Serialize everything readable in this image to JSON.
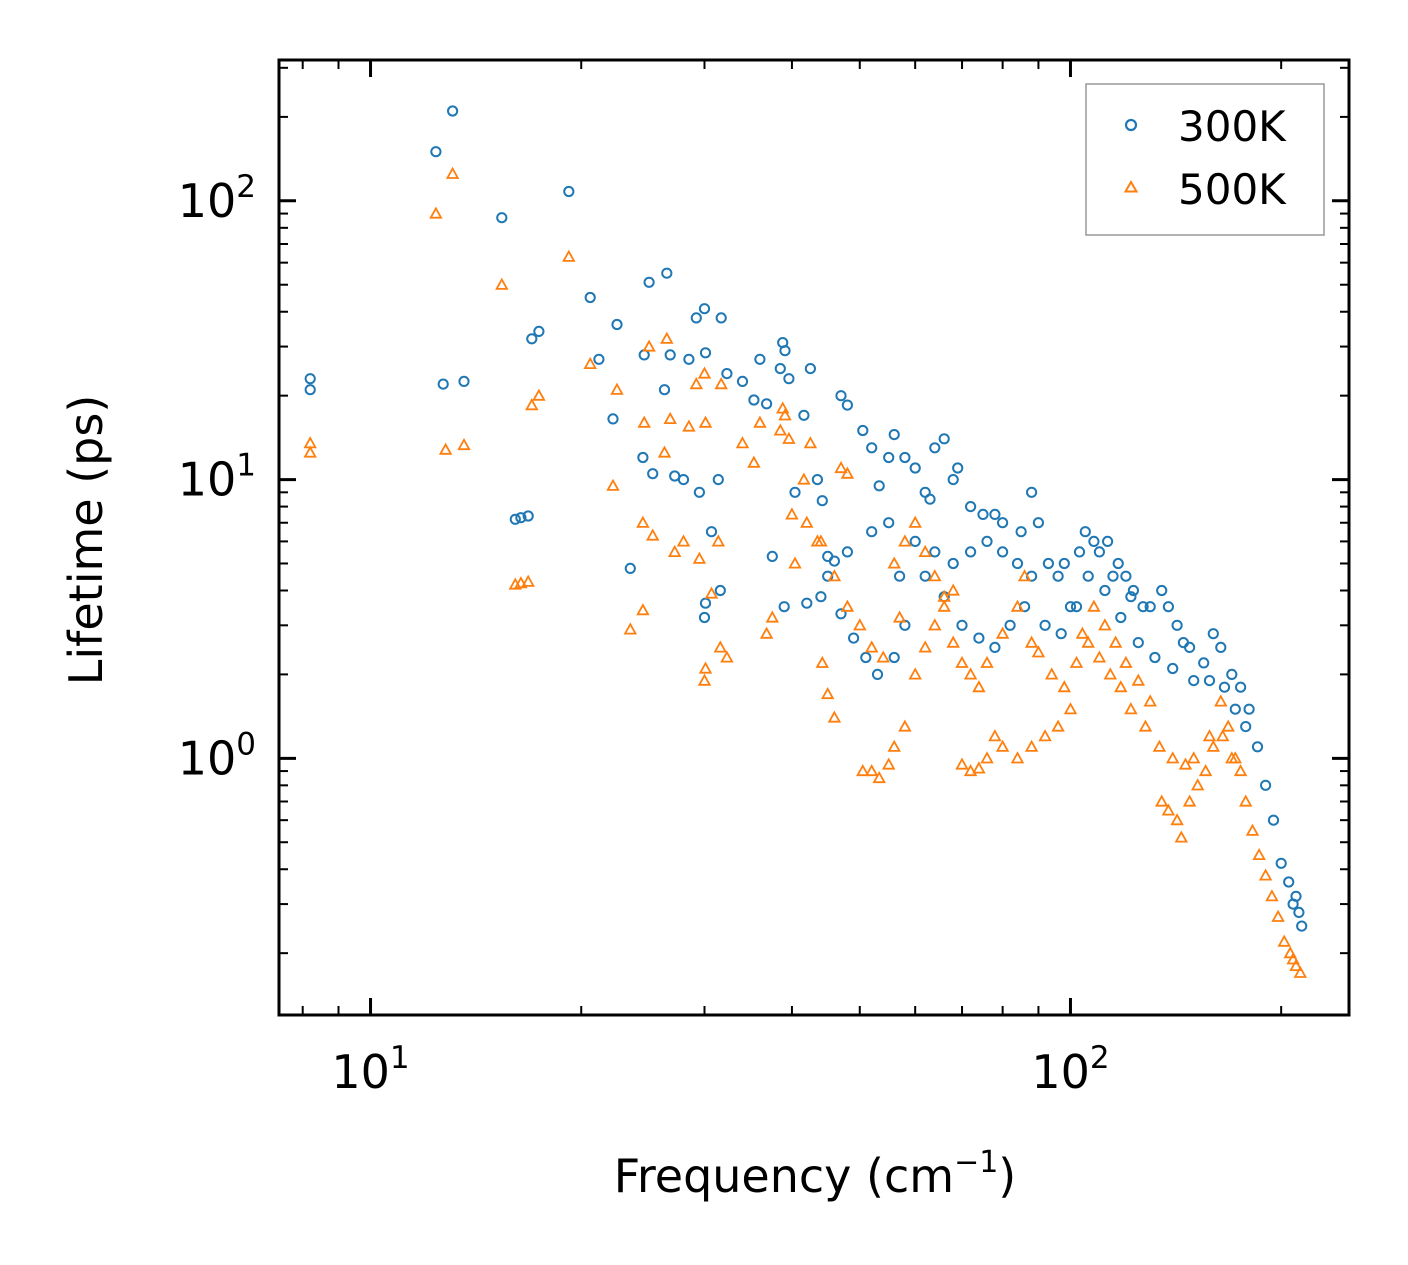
{
  "chart_data": {
    "type": "scatter",
    "title": "",
    "xlabel": "Frequency (cm",
    "xlabel_sup": "−1",
    "xlabel_end": ")",
    "ylabel": "Lifetime (ps)",
    "xscale": "log",
    "yscale": "log",
    "xlim": [
      7.4,
      250
    ],
    "ylim": [
      0.12,
      320
    ],
    "xticks": [
      {
        "value": 10,
        "base": "10",
        "exp": "1"
      },
      {
        "value": 100,
        "base": "10",
        "exp": "2"
      }
    ],
    "yticks": [
      {
        "value": 1,
        "base": "10",
        "exp": "0"
      },
      {
        "value": 10,
        "base": "10",
        "exp": "1"
      },
      {
        "value": 100,
        "base": "10",
        "exp": "2"
      }
    ],
    "legend_position": "top-right",
    "series": [
      {
        "name": "300K",
        "marker": "circle",
        "color": "#1f77b4",
        "points": [
          [
            8.2,
            23
          ],
          [
            8.2,
            21
          ],
          [
            12.4,
            150
          ],
          [
            12.7,
            22
          ],
          [
            13.1,
            210
          ],
          [
            13.6,
            22.5
          ],
          [
            15.4,
            87
          ],
          [
            16.1,
            7.2
          ],
          [
            16.4,
            7.3
          ],
          [
            16.8,
            7.4
          ],
          [
            17.0,
            32
          ],
          [
            17.4,
            34
          ],
          [
            19.2,
            108
          ],
          [
            20.6,
            45
          ],
          [
            21.2,
            27
          ],
          [
            22.5,
            36
          ],
          [
            22.2,
            16.5
          ],
          [
            23.5,
            4.8
          ],
          [
            24.6,
            28
          ],
          [
            24.5,
            12
          ],
          [
            25.0,
            51
          ],
          [
            25.3,
            10.5
          ],
          [
            26.5,
            55
          ],
          [
            26.3,
            21
          ],
          [
            26.8,
            28
          ],
          [
            27.2,
            10.3
          ],
          [
            28.0,
            10
          ],
          [
            28.5,
            27
          ],
          [
            29.2,
            38
          ],
          [
            29.5,
            9
          ],
          [
            30.0,
            41
          ],
          [
            30.1,
            28.5
          ],
          [
            31.4,
            10
          ],
          [
            31.7,
            38
          ],
          [
            30.7,
            6.5
          ],
          [
            31.6,
            4
          ],
          [
            30.1,
            3.6
          ],
          [
            30.0,
            3.2
          ],
          [
            32.3,
            24
          ],
          [
            34.0,
            22.5
          ],
          [
            35.3,
            19.3
          ],
          [
            36.0,
            27
          ],
          [
            36.8,
            18.7
          ],
          [
            37.5,
            5.3
          ],
          [
            38.5,
            25
          ],
          [
            38.8,
            31
          ],
          [
            39.1,
            29
          ],
          [
            39.6,
            23
          ],
          [
            40.4,
            9
          ],
          [
            41.6,
            17
          ],
          [
            42.5,
            25
          ],
          [
            43.5,
            10
          ],
          [
            44.2,
            8.4
          ],
          [
            45.0,
            5.3
          ],
          [
            46.0,
            5.1
          ],
          [
            47.0,
            20
          ],
          [
            48.0,
            18.5
          ],
          [
            50.5,
            15
          ],
          [
            52.0,
            13
          ],
          [
            53.3,
            9.5
          ],
          [
            55.0,
            12
          ],
          [
            56.0,
            14.5
          ],
          [
            58.0,
            12
          ],
          [
            60.0,
            11
          ],
          [
            62.0,
            9
          ],
          [
            63.0,
            8.5
          ],
          [
            64.0,
            13
          ],
          [
            66.0,
            14
          ],
          [
            68.0,
            10
          ],
          [
            69.0,
            11
          ],
          [
            72.0,
            8
          ],
          [
            75.0,
            7.5
          ],
          [
            78.0,
            7.5
          ],
          [
            80.0,
            7
          ],
          [
            85.0,
            6.5
          ],
          [
            88.0,
            9
          ],
          [
            90.0,
            7
          ],
          [
            93.0,
            5
          ],
          [
            96.0,
            4.5
          ],
          [
            100.0,
            3.5
          ],
          [
            105.0,
            6.5
          ],
          [
            108.0,
            6
          ],
          [
            110.0,
            5.5
          ],
          [
            113.0,
            6
          ],
          [
            117.0,
            5
          ],
          [
            120.0,
            4.5
          ],
          [
            123.0,
            4
          ],
          [
            127.0,
            3.5
          ],
          [
            130.0,
            3.5
          ],
          [
            135.0,
            4
          ],
          [
            138.0,
            3.5
          ],
          [
            142.0,
            3
          ],
          [
            148.0,
            2.5
          ],
          [
            155.0,
            2.2
          ],
          [
            160.0,
            2.8
          ],
          [
            164.0,
            2.5
          ],
          [
            170.0,
            2
          ],
          [
            175.0,
            1.8
          ],
          [
            180.0,
            1.5
          ],
          [
            185.0,
            1.1
          ],
          [
            190.0,
            0.8
          ],
          [
            195.0,
            0.6
          ],
          [
            200.0,
            0.42
          ],
          [
            205.0,
            0.36
          ],
          [
            210.0,
            0.32
          ],
          [
            212.0,
            0.28
          ],
          [
            214.0,
            0.25
          ],
          [
            208.0,
            0.3
          ],
          [
            44.0,
            3.8
          ],
          [
            47.0,
            3.3
          ],
          [
            49.0,
            2.7
          ],
          [
            51.0,
            2.3
          ],
          [
            53.0,
            2
          ],
          [
            56.0,
            2.3
          ],
          [
            58.0,
            3
          ],
          [
            62.0,
            4.5
          ],
          [
            66.0,
            3.8
          ],
          [
            70.0,
            3
          ],
          [
            74.0,
            2.7
          ],
          [
            78.0,
            2.5
          ],
          [
            82.0,
            3
          ],
          [
            86.0,
            3.5
          ],
          [
            92.0,
            3
          ],
          [
            97.0,
            2.8
          ],
          [
            102.0,
            3.5
          ],
          [
            106.0,
            4.5
          ],
          [
            112.0,
            4
          ],
          [
            118.0,
            3.2
          ],
          [
            125.0,
            2.6
          ],
          [
            132.0,
            2.3
          ],
          [
            140.0,
            2.1
          ],
          [
            150.0,
            1.9
          ],
          [
            158.0,
            1.9
          ],
          [
            166.0,
            1.8
          ],
          [
            172.0,
            1.5
          ],
          [
            178.0,
            1.3
          ],
          [
            60.0,
            6
          ],
          [
            64.0,
            5.5
          ],
          [
            68.0,
            5
          ],
          [
            72.0,
            5.5
          ],
          [
            76.0,
            6
          ],
          [
            80.0,
            5.5
          ],
          [
            84.0,
            5
          ],
          [
            88.0,
            4.5
          ],
          [
            98.0,
            5
          ],
          [
            103.0,
            5.5
          ],
          [
            115.0,
            4.5
          ],
          [
            122.0,
            3.8
          ],
          [
            145.0,
            2.6
          ],
          [
            55.0,
            7
          ],
          [
            52.0,
            6.5
          ],
          [
            48.0,
            5.5
          ],
          [
            45.0,
            4.5
          ],
          [
            42.0,
            3.6
          ],
          [
            39.0,
            3.5
          ],
          [
            57.0,
            4.5
          ]
        ]
      },
      {
        "name": "500K",
        "marker": "triangle",
        "color": "#ff7f0e",
        "points": [
          [
            8.2,
            13.5
          ],
          [
            8.2,
            12.5
          ],
          [
            12.4,
            90
          ],
          [
            12.8,
            12.8
          ],
          [
            13.1,
            125
          ],
          [
            13.6,
            13.3
          ],
          [
            15.4,
            50
          ],
          [
            16.1,
            4.2
          ],
          [
            16.4,
            4.25
          ],
          [
            16.8,
            4.3
          ],
          [
            17.0,
            18.5
          ],
          [
            17.4,
            20
          ],
          [
            19.2,
            63
          ],
          [
            20.6,
            26
          ],
          [
            22.2,
            9.5
          ],
          [
            22.5,
            21
          ],
          [
            23.5,
            2.9
          ],
          [
            24.5,
            7
          ],
          [
            24.6,
            16
          ],
          [
            24.5,
            3.4
          ],
          [
            25.0,
            30
          ],
          [
            25.3,
            6.3
          ],
          [
            26.5,
            32
          ],
          [
            26.3,
            12.5
          ],
          [
            26.8,
            16.5
          ],
          [
            27.2,
            5.5
          ],
          [
            28.0,
            6
          ],
          [
            28.5,
            15.5
          ],
          [
            29.2,
            22
          ],
          [
            29.5,
            5.2
          ],
          [
            30.0,
            24
          ],
          [
            30.1,
            16
          ],
          [
            31.4,
            6
          ],
          [
            31.7,
            22
          ],
          [
            30.7,
            3.9
          ],
          [
            31.6,
            2.5
          ],
          [
            30.1,
            2.1
          ],
          [
            30.0,
            1.9
          ],
          [
            32.3,
            2.3
          ],
          [
            34.0,
            13.5
          ],
          [
            35.3,
            11.5
          ],
          [
            36.0,
            16
          ],
          [
            36.8,
            2.8
          ],
          [
            37.5,
            3.2
          ],
          [
            38.5,
            15
          ],
          [
            38.8,
            18
          ],
          [
            39.1,
            17
          ],
          [
            39.6,
            14
          ],
          [
            40.4,
            5
          ],
          [
            41.6,
            10
          ],
          [
            42.5,
            13.5
          ],
          [
            43.5,
            6
          ],
          [
            44.2,
            2.2
          ],
          [
            45.0,
            1.7
          ],
          [
            46.0,
            1.4
          ],
          [
            47.0,
            11
          ],
          [
            48.0,
            10.5
          ],
          [
            50.5,
            0.9
          ],
          [
            52.0,
            0.9
          ],
          [
            53.3,
            0.85
          ],
          [
            55.0,
            0.95
          ],
          [
            56.0,
            1.1
          ],
          [
            58.0,
            1.3
          ],
          [
            60.0,
            2
          ],
          [
            62.0,
            2.5
          ],
          [
            64.0,
            3
          ],
          [
            66.0,
            3.5
          ],
          [
            68.0,
            4
          ],
          [
            70.0,
            0.95
          ],
          [
            72.0,
            0.9
          ],
          [
            74.0,
            0.92
          ],
          [
            76.0,
            1
          ],
          [
            78.0,
            1.2
          ],
          [
            80.0,
            1.1
          ],
          [
            84.0,
            1
          ],
          [
            88.0,
            1.1
          ],
          [
            92.0,
            1.2
          ],
          [
            96.0,
            1.3
          ],
          [
            100.0,
            1.5
          ],
          [
            104.0,
            2.8
          ],
          [
            108.0,
            3.5
          ],
          [
            112.0,
            3
          ],
          [
            116.0,
            2.6
          ],
          [
            120.0,
            2.2
          ],
          [
            125.0,
            1.9
          ],
          [
            130.0,
            1.6
          ],
          [
            135.0,
            0.7
          ],
          [
            138.0,
            0.65
          ],
          [
            142.0,
            0.6
          ],
          [
            144.0,
            0.52
          ],
          [
            148.0,
            0.7
          ],
          [
            152.0,
            0.8
          ],
          [
            156.0,
            0.9
          ],
          [
            160.0,
            1.1
          ],
          [
            165.0,
            1.2
          ],
          [
            170.0,
            1
          ],
          [
            175.0,
            0.9
          ],
          [
            178.0,
            0.7
          ],
          [
            182.0,
            0.55
          ],
          [
            186.0,
            0.45
          ],
          [
            190.0,
            0.38
          ],
          [
            194.0,
            0.32
          ],
          [
            198.0,
            0.27
          ],
          [
            202.0,
            0.22
          ],
          [
            206.0,
            0.2
          ],
          [
            210.0,
            0.18
          ],
          [
            213.0,
            0.17
          ],
          [
            208.0,
            0.19
          ],
          [
            56.0,
            5
          ],
          [
            58.0,
            6
          ],
          [
            60.0,
            7
          ],
          [
            62.0,
            5.5
          ],
          [
            64.0,
            4.5
          ],
          [
            66.0,
            3.8
          ],
          [
            68.0,
            2.6
          ],
          [
            70.0,
            2.2
          ],
          [
            72.0,
            2
          ],
          [
            74.0,
            1.8
          ],
          [
            76.0,
            2.2
          ],
          [
            80.0,
            2.8
          ],
          [
            84.0,
            3.5
          ],
          [
            86.0,
            4.5
          ],
          [
            88.0,
            2.6
          ],
          [
            90.0,
            2.4
          ],
          [
            94.0,
            2
          ],
          [
            98.0,
            1.8
          ],
          [
            102.0,
            2.2
          ],
          [
            106.0,
            2.6
          ],
          [
            110.0,
            2.3
          ],
          [
            114.0,
            2
          ],
          [
            118.0,
            1.8
          ],
          [
            122.0,
            1.5
          ],
          [
            128.0,
            1.3
          ],
          [
            134.0,
            1.1
          ],
          [
            140.0,
            1
          ],
          [
            146.0,
            0.95
          ],
          [
            150.0,
            1
          ],
          [
            158.0,
            1.2
          ],
          [
            164.0,
            1.6
          ],
          [
            168.0,
            1.3
          ],
          [
            172.0,
            1
          ],
          [
            48.0,
            3.5
          ],
          [
            50.0,
            3
          ],
          [
            52.0,
            2.5
          ],
          [
            54.0,
            2.3
          ],
          [
            46.0,
            4.5
          ],
          [
            44.0,
            6
          ],
          [
            42.0,
            7
          ],
          [
            40.0,
            7.5
          ],
          [
            57.0,
            3.2
          ]
        ]
      }
    ]
  }
}
